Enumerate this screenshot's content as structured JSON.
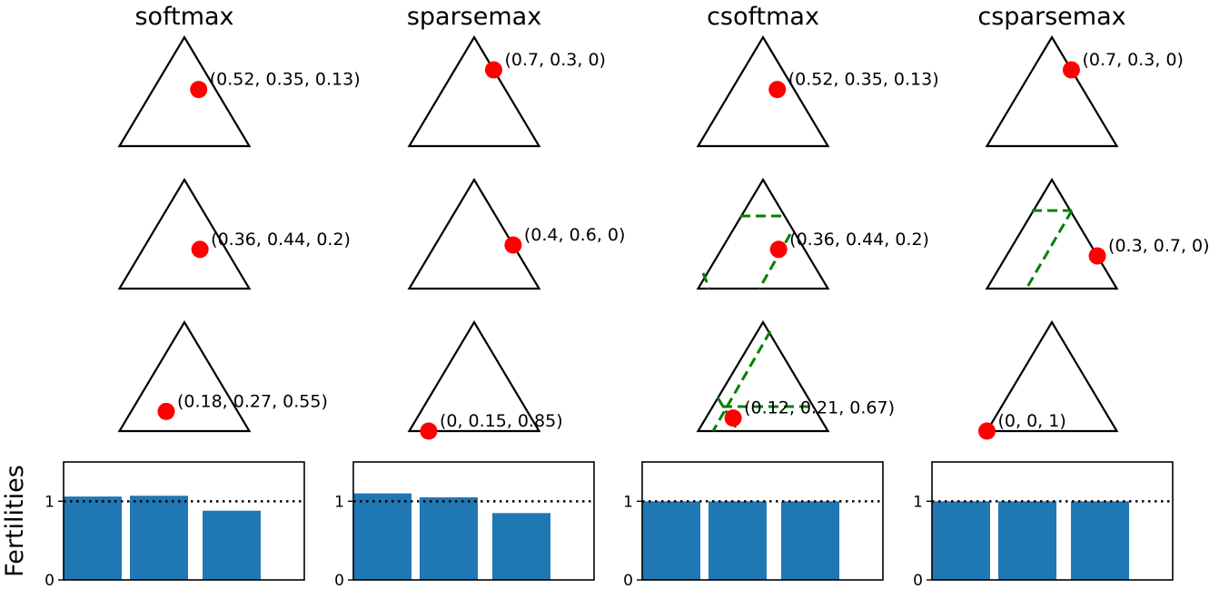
{
  "figure": {
    "ylabel": "Fertilities"
  },
  "colors": {
    "point": "#ff0000",
    "bar": "#1f77b4",
    "constraint": "#008000",
    "line": "#000000"
  },
  "chart_data": [
    {
      "type": "bar",
      "title": "softmax",
      "simplex_points": [
        [
          0.52,
          0.35,
          0.13
        ],
        [
          0.36,
          0.44,
          0.2
        ],
        [
          0.18,
          0.27,
          0.55
        ]
      ],
      "labels": [
        "(0.52, 0.35, 0.13)",
        "(0.36, 0.44, 0.2)",
        "(0.18, 0.27, 0.55)"
      ],
      "constraints": [
        false,
        false,
        false
      ],
      "fertilities": [
        1.06,
        1.07,
        0.88
      ],
      "ylim": [
        0,
        1.5
      ],
      "yticks": [
        "0",
        "1"
      ],
      "reference_line": 1
    },
    {
      "type": "bar",
      "title": "sparsemax",
      "simplex_points": [
        [
          0.7,
          0.3,
          0
        ],
        [
          0.4,
          0.6,
          0
        ],
        [
          0,
          0.15,
          0.85
        ]
      ],
      "labels": [
        "(0.7, 0.3, 0)",
        "(0.4, 0.6, 0)",
        "(0, 0.15, 0.85)"
      ],
      "constraints": [
        false,
        false,
        false
      ],
      "fertilities": [
        1.1,
        1.05,
        0.85
      ],
      "ylim": [
        0,
        1.5
      ],
      "yticks": [
        "0",
        "1"
      ],
      "reference_line": 1
    },
    {
      "type": "bar",
      "title": "csoftmax",
      "simplex_points": [
        [
          0.52,
          0.35,
          0.13
        ],
        [
          0.36,
          0.44,
          0.2
        ],
        [
          0.12,
          0.21,
          0.67
        ]
      ],
      "labels": [
        "(0.52, 0.35, 0.13)",
        "(0.36, 0.44, 0.2)",
        "(0.12, 0.21, 0.67)"
      ],
      "constraints": [
        false,
        true,
        true
      ],
      "fertilities": [
        1.0,
        1.0,
        1.0
      ],
      "ylim": [
        0,
        1.5
      ],
      "yticks": [
        "0",
        "1"
      ],
      "reference_line": 1
    },
    {
      "type": "bar",
      "title": "csparsemax",
      "simplex_points": [
        [
          0.7,
          0.3,
          0
        ],
        [
          0.3,
          0.7,
          0
        ],
        [
          0,
          0,
          1
        ]
      ],
      "labels": [
        "(0.7, 0.3, 0)",
        "(0.3, 0.7, 0)",
        "(0, 0, 1)"
      ],
      "constraints": [
        false,
        true,
        false
      ],
      "fertilities": [
        1.0,
        1.0,
        1.0
      ],
      "ylim": [
        0,
        1.5
      ],
      "yticks": [
        "0",
        "1"
      ],
      "reference_line": 1
    }
  ]
}
